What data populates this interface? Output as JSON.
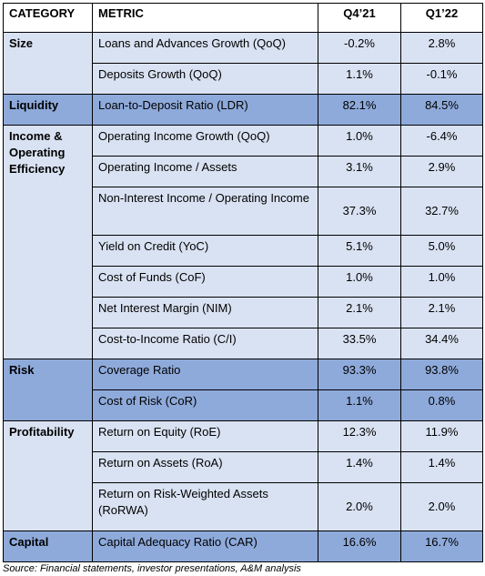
{
  "headers": {
    "category": "CATEGORY",
    "metric": "METRIC",
    "q4": "Q4’21",
    "q1": "Q1’22"
  },
  "rows": [
    {
      "category": "Size",
      "metric": "Loans and Advances Growth (QoQ)",
      "q4": "-0.2%",
      "q1": "2.8%"
    },
    {
      "metric": "Deposits Growth (QoQ)",
      "q4": "1.1%",
      "q1": "-0.1%"
    },
    {
      "category": "Liquidity",
      "metric": "Loan-to-Deposit Ratio (LDR)",
      "q4": "82.1%",
      "q1": "84.5%"
    },
    {
      "category": "Income & Operating Efficiency",
      "metric": "Operating Income Growth (QoQ)",
      "q4": "1.0%",
      "q1": "-6.4%"
    },
    {
      "metric": "Operating Income / Assets",
      "q4": "3.1%",
      "q1": "2.9%"
    },
    {
      "metric": "Non-Interest Income / Operating Income",
      "q4": "37.3%",
      "q1": "32.7%"
    },
    {
      "metric": "Yield on Credit (YoC)",
      "q4": "5.1%",
      "q1": "5.0%"
    },
    {
      "metric": "Cost of Funds (CoF)",
      "q4": "1.0%",
      "q1": "1.0%"
    },
    {
      "metric": "Net Interest Margin (NIM)",
      "q4": "2.1%",
      "q1": "2.1%"
    },
    {
      "metric": "Cost-to-Income Ratio (C/I)",
      "q4": "33.5%",
      "q1": "34.4%"
    },
    {
      "category": "Risk",
      "metric": "Coverage Ratio",
      "q4": "93.3%",
      "q1": "93.8%"
    },
    {
      "metric": "Cost of Risk (CoR)",
      "q4": "1.1%",
      "q1": "0.8%"
    },
    {
      "category": "Profitability",
      "metric": "Return on Equity (RoE)",
      "q4": "12.3%",
      "q1": "11.9%"
    },
    {
      "metric": "Return on Assets (RoA)",
      "q4": "1.4%",
      "q1": "1.4%"
    },
    {
      "metric": "Return on Risk-Weighted Assets (RoRWA)",
      "q4": "2.0%",
      "q1": "2.0%"
    },
    {
      "category": "Capital",
      "metric": "Capital Adequacy Ratio (CAR)",
      "q4": "16.6%",
      "q1": "16.7%"
    }
  ],
  "source": "Source: Financial statements, investor presentations, A&M analysis"
}
